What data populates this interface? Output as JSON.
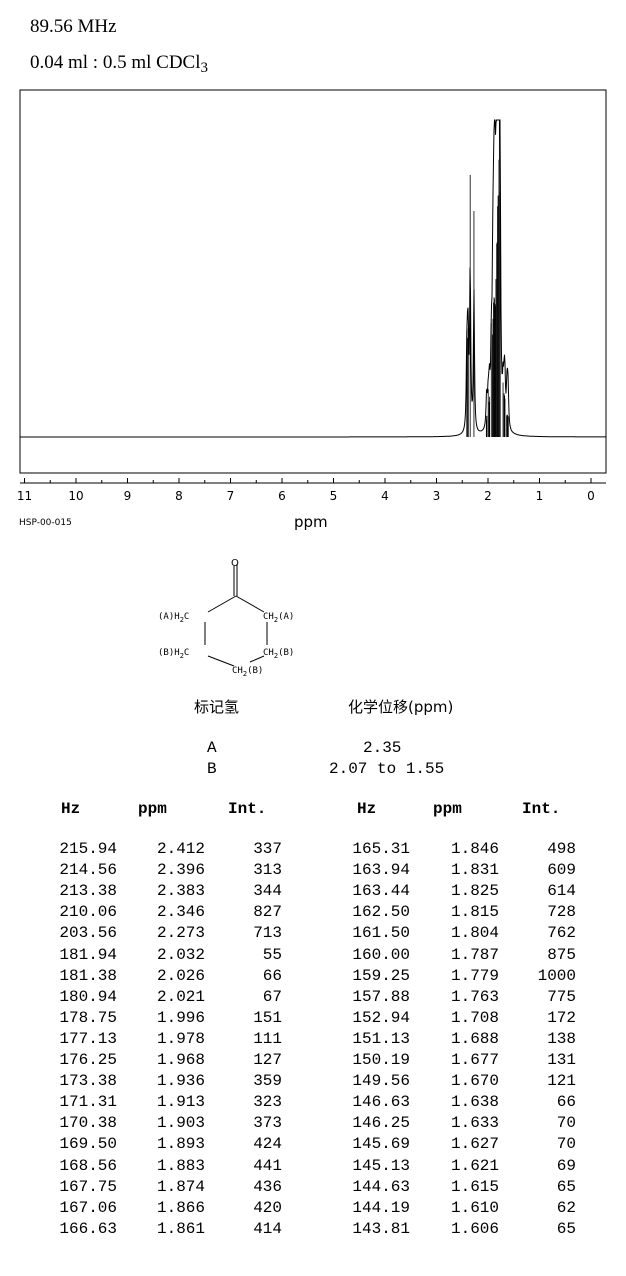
{
  "header": {
    "frequency": "89.56 MHz",
    "sample_main": "0.04 ml : 0.5 ml CDCl",
    "sample_sub": "3"
  },
  "code": "HSP-00-015",
  "chart_data": {
    "type": "line",
    "xlabel": "ppm",
    "xlim": [
      11,
      0
    ],
    "x_ticks": [
      "11",
      "10",
      "9",
      "8",
      "7",
      "6",
      "5",
      "4",
      "3",
      "2",
      "1",
      "0"
    ],
    "reversed_x": true,
    "grid": false,
    "peaks": [
      {
        "ppm": 2.412,
        "int": 337
      },
      {
        "ppm": 2.396,
        "int": 313
      },
      {
        "ppm": 2.383,
        "int": 344
      },
      {
        "ppm": 2.346,
        "int": 827
      },
      {
        "ppm": 2.273,
        "int": 713
      },
      {
        "ppm": 2.032,
        "int": 55
      },
      {
        "ppm": 2.026,
        "int": 66
      },
      {
        "ppm": 2.021,
        "int": 67
      },
      {
        "ppm": 1.996,
        "int": 151
      },
      {
        "ppm": 1.978,
        "int": 111
      },
      {
        "ppm": 1.968,
        "int": 127
      },
      {
        "ppm": 1.936,
        "int": 359
      },
      {
        "ppm": 1.913,
        "int": 323
      },
      {
        "ppm": 1.903,
        "int": 373
      },
      {
        "ppm": 1.893,
        "int": 424
      },
      {
        "ppm": 1.883,
        "int": 441
      },
      {
        "ppm": 1.874,
        "int": 436
      },
      {
        "ppm": 1.866,
        "int": 420
      },
      {
        "ppm": 1.861,
        "int": 414
      },
      {
        "ppm": 1.846,
        "int": 498
      },
      {
        "ppm": 1.831,
        "int": 609
      },
      {
        "ppm": 1.825,
        "int": 614
      },
      {
        "ppm": 1.815,
        "int": 728
      },
      {
        "ppm": 1.804,
        "int": 762
      },
      {
        "ppm": 1.787,
        "int": 875
      },
      {
        "ppm": 1.779,
        "int": 1000
      },
      {
        "ppm": 1.763,
        "int": 775
      },
      {
        "ppm": 1.708,
        "int": 172
      },
      {
        "ppm": 1.688,
        "int": 138
      },
      {
        "ppm": 1.677,
        "int": 131
      },
      {
        "ppm": 1.67,
        "int": 121
      },
      {
        "ppm": 1.638,
        "int": 66
      },
      {
        "ppm": 1.633,
        "int": 70
      },
      {
        "ppm": 1.627,
        "int": 70
      },
      {
        "ppm": 1.621,
        "int": 69
      },
      {
        "ppm": 1.615,
        "int": 65
      },
      {
        "ppm": 1.61,
        "int": 62
      },
      {
        "ppm": 1.606,
        "int": 65
      }
    ]
  },
  "structure": {
    "oxygen": "O",
    "a_left": "(A)H",
    "a_left_sub": "2",
    "a_left_c": "C",
    "a_right": "CH",
    "a_right_sub": "2",
    "a_right_tag": "(A)",
    "b_left": "(B)H",
    "b_left_sub": "2",
    "b_left_c": "C",
    "b_right": "CH",
    "b_right_sub": "2",
    "b_right_tag": "(B)",
    "b_bottom": "CH",
    "b_bottom_sub": "2",
    "b_bottom_tag": "(B)"
  },
  "assignment": {
    "col1_header": "标记氢",
    "col2_header": "化学位移(ppm)",
    "rows": [
      {
        "label": "A",
        "shift": "2.35"
      },
      {
        "label": "B",
        "shift": "2.07 to 1.55"
      }
    ]
  },
  "peak_table": {
    "headers": [
      "Hz",
      "ppm",
      "Int."
    ],
    "left": [
      [
        "215.94",
        "2.412",
        "337"
      ],
      [
        "214.56",
        "2.396",
        "313"
      ],
      [
        "213.38",
        "2.383",
        "344"
      ],
      [
        "210.06",
        "2.346",
        "827"
      ],
      [
        "203.56",
        "2.273",
        "713"
      ],
      [
        "181.94",
        "2.032",
        "55"
      ],
      [
        "181.38",
        "2.026",
        "66"
      ],
      [
        "180.94",
        "2.021",
        "67"
      ],
      [
        "178.75",
        "1.996",
        "151"
      ],
      [
        "177.13",
        "1.978",
        "111"
      ],
      [
        "176.25",
        "1.968",
        "127"
      ],
      [
        "173.38",
        "1.936",
        "359"
      ],
      [
        "171.31",
        "1.913",
        "323"
      ],
      [
        "170.38",
        "1.903",
        "373"
      ],
      [
        "169.50",
        "1.893",
        "424"
      ],
      [
        "168.56",
        "1.883",
        "441"
      ],
      [
        "167.75",
        "1.874",
        "436"
      ],
      [
        "167.06",
        "1.866",
        "420"
      ],
      [
        "166.63",
        "1.861",
        "414"
      ]
    ],
    "right": [
      [
        "165.31",
        "1.846",
        "498"
      ],
      [
        "163.94",
        "1.831",
        "609"
      ],
      [
        "163.44",
        "1.825",
        "614"
      ],
      [
        "162.50",
        "1.815",
        "728"
      ],
      [
        "161.50",
        "1.804",
        "762"
      ],
      [
        "160.00",
        "1.787",
        "875"
      ],
      [
        "159.25",
        "1.779",
        "1000"
      ],
      [
        "157.88",
        "1.763",
        "775"
      ],
      [
        "152.94",
        "1.708",
        "172"
      ],
      [
        "151.13",
        "1.688",
        "138"
      ],
      [
        "150.19",
        "1.677",
        "131"
      ],
      [
        "149.56",
        "1.670",
        "121"
      ],
      [
        "146.63",
        "1.638",
        "66"
      ],
      [
        "146.25",
        "1.633",
        "70"
      ],
      [
        "145.69",
        "1.627",
        "70"
      ],
      [
        "145.13",
        "1.621",
        "69"
      ],
      [
        "144.63",
        "1.615",
        "65"
      ],
      [
        "144.19",
        "1.610",
        "62"
      ],
      [
        "143.81",
        "1.606",
        "65"
      ]
    ]
  }
}
